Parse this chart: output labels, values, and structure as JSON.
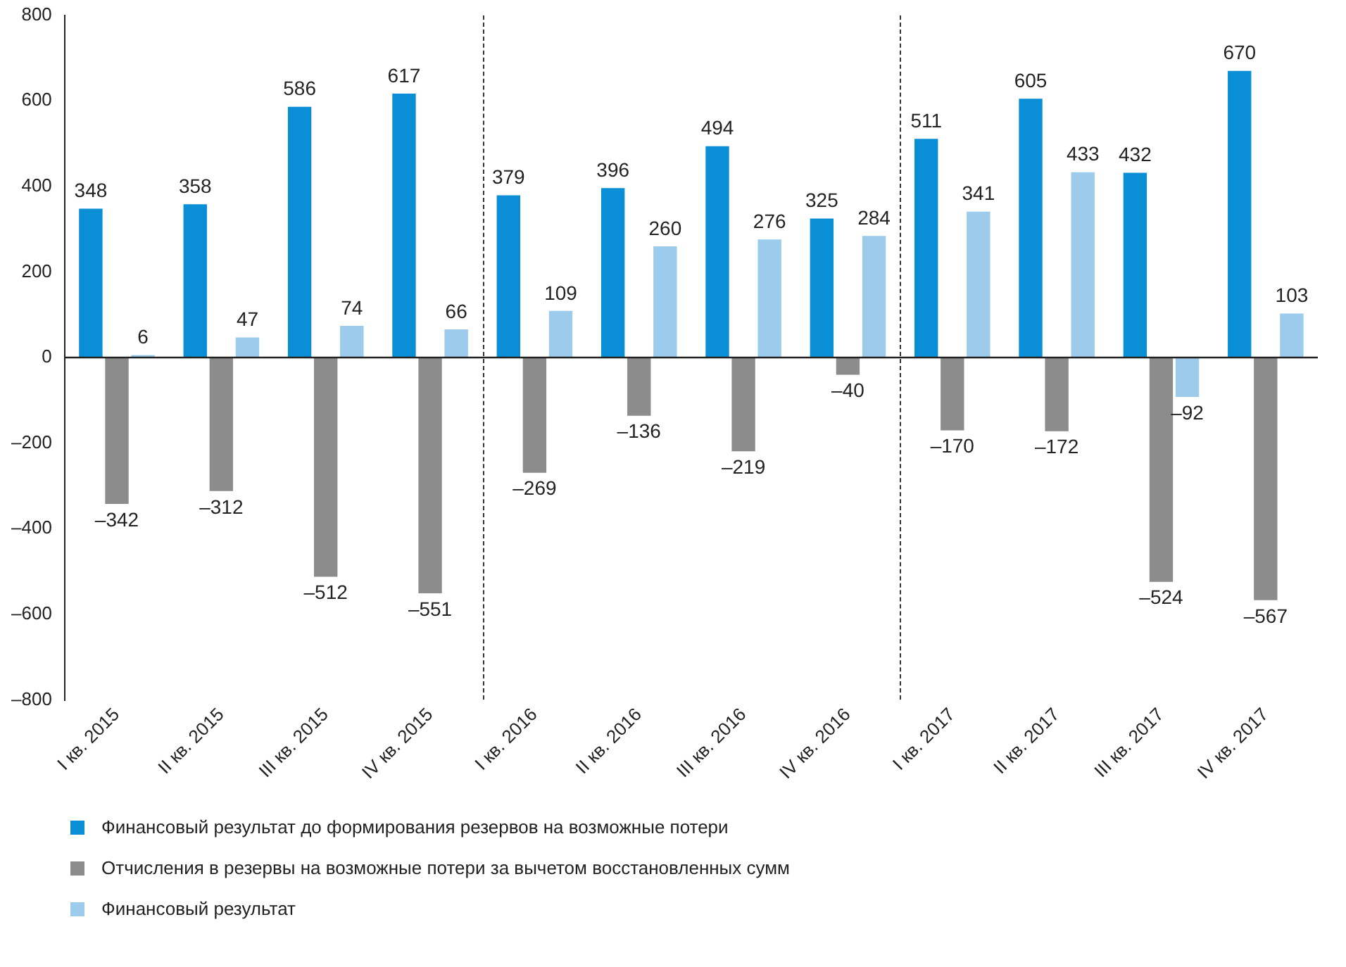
{
  "chart_data": {
    "type": "bar",
    "categories": [
      "I кв. 2015",
      "II кв. 2015",
      "III кв. 2015",
      "IV кв. 2015",
      "I кв. 2016",
      "II кв. 2016",
      "III кв. 2016",
      "IV кв. 2016",
      "I кв. 2017",
      "II кв. 2017",
      "III кв. 2017",
      "IV кв. 2017"
    ],
    "series": [
      {
        "name": "Финансовый результат до формирования резервов на возможные потери",
        "color": "#0a8fd6",
        "values": [
          348,
          358,
          586,
          617,
          379,
          396,
          494,
          325,
          511,
          605,
          432,
          670
        ],
        "value_labels": [
          "348",
          "358",
          "586",
          "617",
          "379",
          "396",
          "494",
          "325",
          "511",
          "605",
          "432",
          "670"
        ]
      },
      {
        "name": "Отчисления в резервы на возможные потери за вычетом восстановленных сумм",
        "color": "#8c8c8c",
        "values": [
          -342,
          -312,
          -512,
          -551,
          -269,
          -136,
          -219,
          -40,
          -170,
          -172,
          -524,
          -567
        ],
        "value_labels": [
          "–342",
          "–312",
          "–512",
          "–551",
          "–269",
          "–136",
          "–219",
          "–40",
          "–170",
          "–172",
          "–524",
          "–567"
        ]
      },
      {
        "name": "Финансовый результат",
        "color": "#9ccbeb",
        "values": [
          6,
          47,
          74,
          66,
          109,
          260,
          276,
          284,
          341,
          433,
          -92,
          103
        ],
        "value_labels": [
          "6",
          "47",
          "74",
          "66",
          "109",
          "260",
          "276",
          "284",
          "341",
          "433",
          "–92",
          "103"
        ]
      }
    ],
    "ylim": [
      -800,
      800
    ],
    "yticks": [
      {
        "value": -800,
        "label": "–800"
      },
      {
        "value": -600,
        "label": "–600"
      },
      {
        "value": -400,
        "label": "–400"
      },
      {
        "value": -200,
        "label": "–200"
      },
      0,
      200,
      400,
      600,
      800
    ],
    "grid": false,
    "legend": "bottom"
  }
}
